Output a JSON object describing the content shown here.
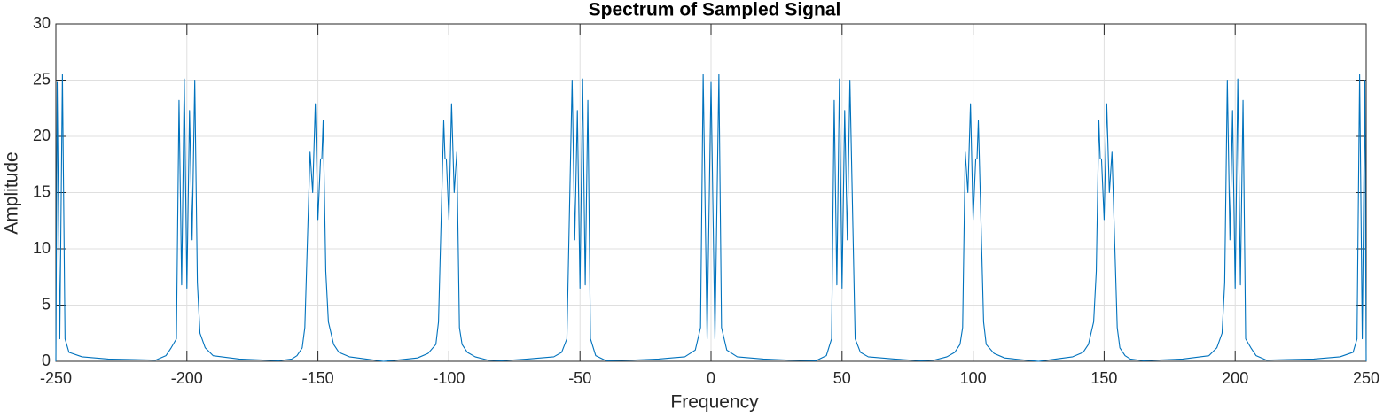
{
  "chart_data": {
    "type": "line",
    "title": "Spectrum of Sampled Signal",
    "x_label": "Frequency",
    "y_label": "Amplitude",
    "x": [
      -250,
      -249.5,
      -248.5,
      -247.5,
      -246.5,
      -245,
      -240,
      -230,
      -220,
      -212,
      -208,
      -206,
      -204,
      -203,
      -202,
      -201,
      -200,
      -199,
      -198,
      -197,
      -196,
      -195,
      -193,
      -190,
      -180,
      -170,
      -165,
      -160,
      -158,
      -156,
      -155,
      -153,
      -152,
      -151,
      -150,
      -149,
      -148.5,
      -148,
      -147,
      -146,
      -144,
      -142,
      -138,
      -130,
      -125,
      -120,
      -112,
      -108,
      -105,
      -104,
      -102,
      -101.5,
      -101,
      -100,
      -99,
      -98,
      -97,
      -96,
      -95,
      -93,
      -90,
      -85,
      -80,
      -70,
      -60,
      -57,
      -55,
      -53,
      -52,
      -51,
      -50,
      -49,
      -48,
      -47,
      -46,
      -44,
      -40,
      -30,
      -20,
      -10,
      -6,
      -4,
      -3,
      -1.5,
      0,
      1.5,
      3,
      4,
      6,
      10,
      20,
      30,
      40,
      44,
      46,
      47,
      48,
      49,
      50,
      51,
      52,
      53,
      55,
      57,
      60,
      70,
      80,
      85,
      90,
      93,
      95,
      96,
      97,
      98,
      99,
      100,
      101,
      101.5,
      102,
      104,
      105,
      108,
      112,
      120,
      125,
      130,
      138,
      142,
      144,
      146,
      147,
      148,
      148.5,
      149,
      150,
      151,
      152,
      153,
      155,
      156,
      158,
      160,
      165,
      170,
      180,
      190,
      193,
      195,
      196,
      197,
      198,
      199,
      200,
      201,
      202,
      203,
      204,
      206,
      208,
      212,
      220,
      230,
      240,
      245,
      246.5,
      247.5,
      248.5,
      249.5,
      250
    ],
    "series": [
      {
        "name": "Spectrum",
        "color": "#0072BD",
        "values": [
          0,
          24.8,
          2,
          25.5,
          2,
          0.8,
          0.4,
          0.2,
          0.15,
          0.1,
          0.5,
          1.2,
          2,
          23.2,
          6.8,
          25.1,
          6.5,
          22.3,
          10.8,
          25,
          7,
          2.5,
          1.2,
          0.5,
          0.2,
          0.1,
          0.05,
          0.2,
          0.5,
          1.2,
          3,
          18.6,
          15,
          22.9,
          12.6,
          18,
          18,
          21.4,
          8,
          3.5,
          1.5,
          0.8,
          0.4,
          0.15,
          0,
          0.1,
          0.3,
          0.7,
          1.5,
          3.5,
          21.4,
          18,
          18,
          12.6,
          22.9,
          15,
          18.6,
          3,
          1.5,
          0.8,
          0.4,
          0.1,
          0.05,
          0.2,
          0.4,
          0.8,
          2,
          25,
          10.8,
          22.3,
          6.5,
          25.1,
          6.8,
          23.2,
          2,
          0.5,
          0.05,
          0.1,
          0.2,
          0.4,
          1,
          3,
          25.5,
          2,
          24.8,
          2,
          25.5,
          3,
          1,
          0.4,
          0.2,
          0.1,
          0.05,
          0.5,
          2,
          23.2,
          6.8,
          25.1,
          6.5,
          22.3,
          10.8,
          25,
          2,
          0.8,
          0.4,
          0.2,
          0.05,
          0.1,
          0.4,
          0.8,
          1.5,
          3,
          18.6,
          15,
          22.9,
          12.6,
          18,
          18,
          21.4,
          3.5,
          1.5,
          0.7,
          0.3,
          0.1,
          0,
          0.15,
          0.4,
          0.8,
          1.5,
          3.5,
          8,
          21.4,
          18,
          18,
          12.6,
          22.9,
          15,
          18.6,
          3,
          1.2,
          0.5,
          0.2,
          0.05,
          0.1,
          0.2,
          0.5,
          1.2,
          2.5,
          7,
          25,
          10.8,
          22.3,
          6.5,
          25.1,
          6.8,
          23.2,
          2,
          1.2,
          0.5,
          0.1,
          0.15,
          0.2,
          0.4,
          0.8,
          2,
          25.5,
          2,
          25,
          0
        ]
      }
    ],
    "xlim": [
      -250,
      250
    ],
    "ylim": [
      0,
      30
    ],
    "xticks": [
      -250,
      -200,
      -150,
      -100,
      -50,
      0,
      50,
      100,
      150,
      200,
      250
    ],
    "yticks": [
      0,
      5,
      10,
      15,
      20,
      25,
      30
    ],
    "grid": true
  }
}
